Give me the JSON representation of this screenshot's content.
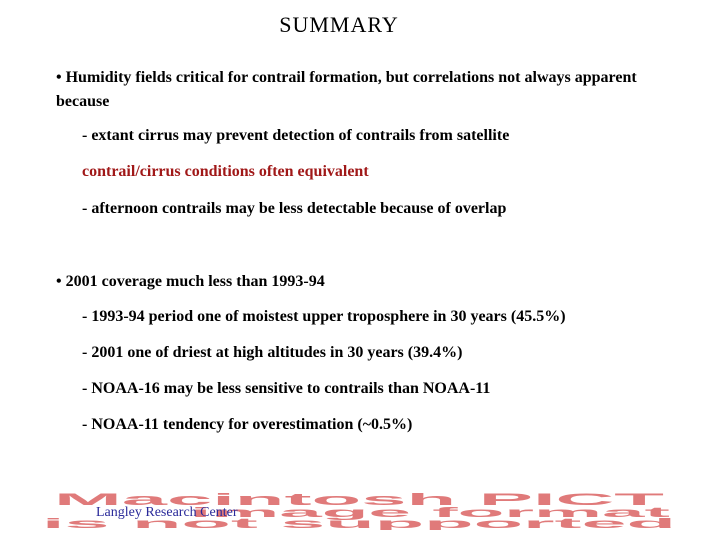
{
  "title": "SUMMARY",
  "bullets": [
    {
      "text": "• Humidity fields critical for contrail formation, but correlations not always apparent because",
      "subs": [
        "- extant cirrus may prevent detection of contrails from satellite",
        "contrail/cirrus conditions often equivalent",
        "- afternoon contrails may be less detectable because of overlap"
      ]
    },
    {
      "text": "• 2001 coverage much less than 1993-94",
      "subs": [
        "- 1993-94 period one of moistest upper troposphere in 30 years (45.5%)",
        "- 2001 one of driest at high altitudes in 30 years (39.4%)",
        "- NOAA-16 may be less sensitive to contrails than NOAA-11",
        "- NOAA-11 tendency for overestimation (~0.5%)"
      ]
    }
  ],
  "pict_placeholder": {
    "line1": "Macintosh PICT",
    "line2": "image format",
    "line3": "is not supported"
  },
  "footer": "Langley Research Center",
  "colors": {
    "highlight_text": "#a01818",
    "footer_text": "#2a2a9a",
    "pict_text": "#e07a7a"
  }
}
